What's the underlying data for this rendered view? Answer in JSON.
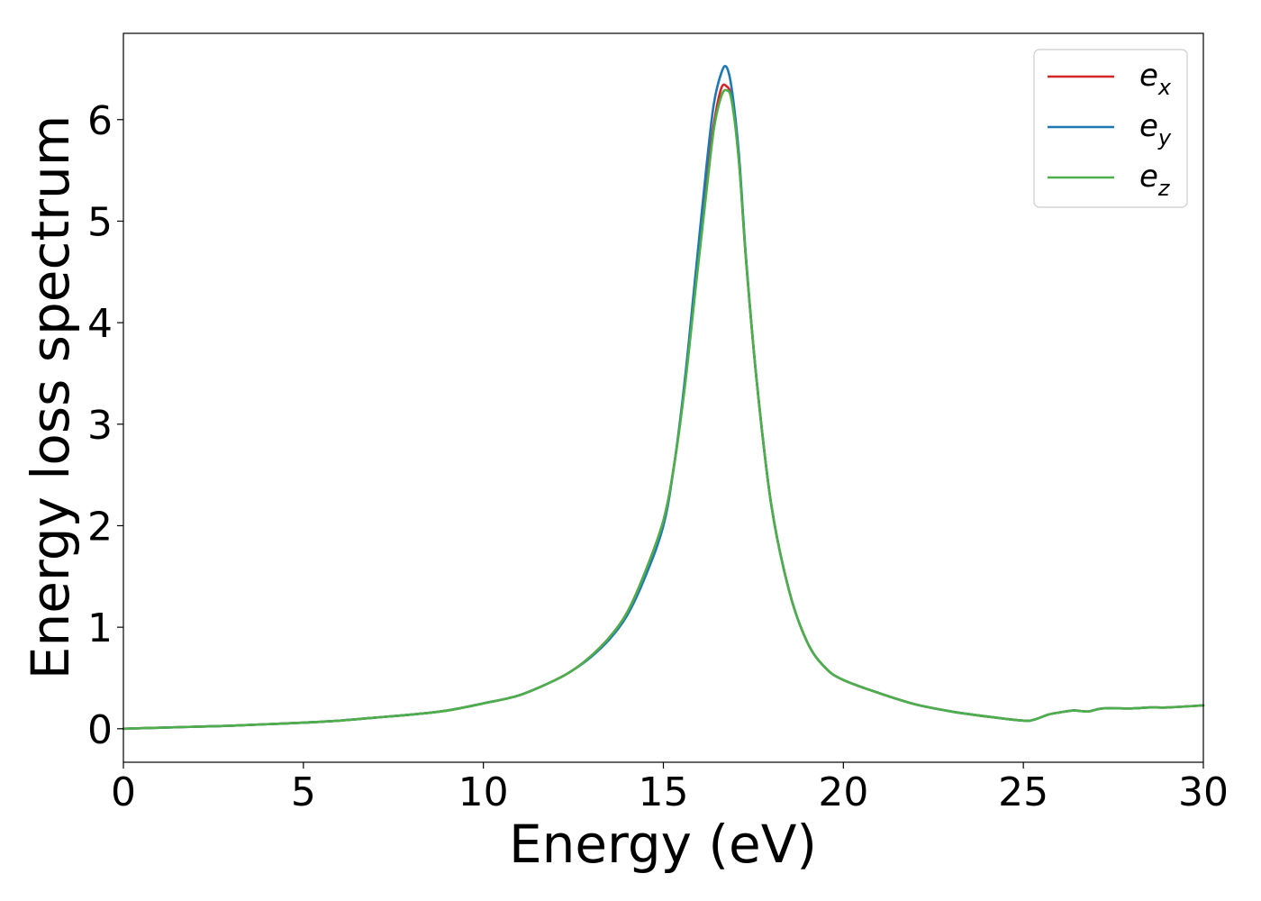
{
  "chart_data": {
    "type": "line",
    "xlabel": "Energy (eV)",
    "ylabel": "Energy loss spectrum",
    "xlim": [
      0,
      30
    ],
    "ylim": [
      -0.33,
      6.85
    ],
    "xticks": [
      0,
      5,
      10,
      15,
      20,
      25,
      30
    ],
    "yticks": [
      0,
      1,
      2,
      3,
      4,
      5,
      6
    ],
    "grid": false,
    "legend_position": "top-right",
    "series": [
      {
        "name": "e_x",
        "legend_base": "e",
        "legend_sub": "x",
        "color": "#d62728",
        "x": [
          0,
          1,
          2,
          3,
          4,
          5,
          6,
          7,
          8,
          9,
          10,
          11,
          12,
          12.5,
          13,
          13.5,
          14,
          14.5,
          15,
          15.3,
          15.6,
          15.9,
          16.2,
          16.4,
          16.6,
          16.75,
          16.9,
          17.1,
          17.3,
          17.6,
          18,
          18.5,
          19,
          19.5,
          20,
          21,
          22,
          23,
          24,
          25,
          25.3,
          25.7,
          26,
          26.4,
          26.8,
          27.2,
          28,
          28.5,
          29,
          30
        ],
        "y": [
          0,
          0.01,
          0.02,
          0.03,
          0.045,
          0.06,
          0.08,
          0.11,
          0.14,
          0.18,
          0.25,
          0.33,
          0.48,
          0.58,
          0.72,
          0.9,
          1.15,
          1.55,
          2.05,
          2.6,
          3.4,
          4.4,
          5.4,
          5.95,
          6.3,
          6.33,
          6.2,
          5.6,
          4.6,
          3.4,
          2.2,
          1.35,
          0.85,
          0.6,
          0.48,
          0.35,
          0.24,
          0.17,
          0.12,
          0.08,
          0.09,
          0.14,
          0.16,
          0.18,
          0.17,
          0.2,
          0.2,
          0.21,
          0.21,
          0.23
        ]
      },
      {
        "name": "e_y",
        "legend_base": "e",
        "legend_sub": "y",
        "color": "#1f77b4",
        "x": [
          0,
          1,
          2,
          3,
          4,
          5,
          6,
          7,
          8,
          9,
          10,
          11,
          12,
          12.5,
          13,
          13.5,
          14,
          14.5,
          15,
          15.3,
          15.6,
          15.9,
          16.2,
          16.4,
          16.6,
          16.75,
          16.9,
          17.1,
          17.3,
          17.6,
          18,
          18.5,
          19,
          19.5,
          20,
          21,
          22,
          23,
          24,
          25,
          25.3,
          25.7,
          26,
          26.4,
          26.8,
          27.2,
          28,
          28.5,
          29,
          30
        ],
        "y": [
          0,
          0.01,
          0.02,
          0.03,
          0.045,
          0.06,
          0.08,
          0.11,
          0.14,
          0.18,
          0.25,
          0.33,
          0.48,
          0.58,
          0.71,
          0.88,
          1.12,
          1.5,
          2.0,
          2.6,
          3.45,
          4.5,
          5.55,
          6.15,
          6.45,
          6.52,
          6.3,
          5.65,
          4.62,
          3.4,
          2.2,
          1.35,
          0.85,
          0.6,
          0.48,
          0.35,
          0.24,
          0.17,
          0.12,
          0.08,
          0.09,
          0.14,
          0.16,
          0.18,
          0.17,
          0.2,
          0.2,
          0.21,
          0.21,
          0.23
        ]
      },
      {
        "name": "e_z",
        "legend_base": "e",
        "legend_sub": "z",
        "color": "#4daf4a",
        "x": [
          0,
          1,
          2,
          3,
          4,
          5,
          6,
          7,
          8,
          9,
          10,
          11,
          12,
          12.5,
          13,
          13.5,
          14,
          14.5,
          15,
          15.3,
          15.6,
          15.9,
          16.2,
          16.4,
          16.6,
          16.75,
          16.9,
          17.1,
          17.3,
          17.6,
          18,
          18.5,
          19,
          19.5,
          20,
          21,
          22,
          23,
          24,
          25,
          25.3,
          25.7,
          26,
          26.4,
          26.8,
          27.2,
          28,
          28.5,
          29,
          30
        ],
        "y": [
          0,
          0.01,
          0.02,
          0.03,
          0.045,
          0.06,
          0.08,
          0.11,
          0.14,
          0.18,
          0.25,
          0.33,
          0.48,
          0.58,
          0.72,
          0.9,
          1.15,
          1.55,
          2.05,
          2.6,
          3.38,
          4.35,
          5.3,
          5.9,
          6.22,
          6.29,
          6.18,
          5.58,
          4.6,
          3.4,
          2.2,
          1.35,
          0.85,
          0.6,
          0.48,
          0.35,
          0.24,
          0.17,
          0.12,
          0.08,
          0.09,
          0.14,
          0.16,
          0.18,
          0.17,
          0.2,
          0.2,
          0.21,
          0.21,
          0.23
        ]
      }
    ]
  }
}
